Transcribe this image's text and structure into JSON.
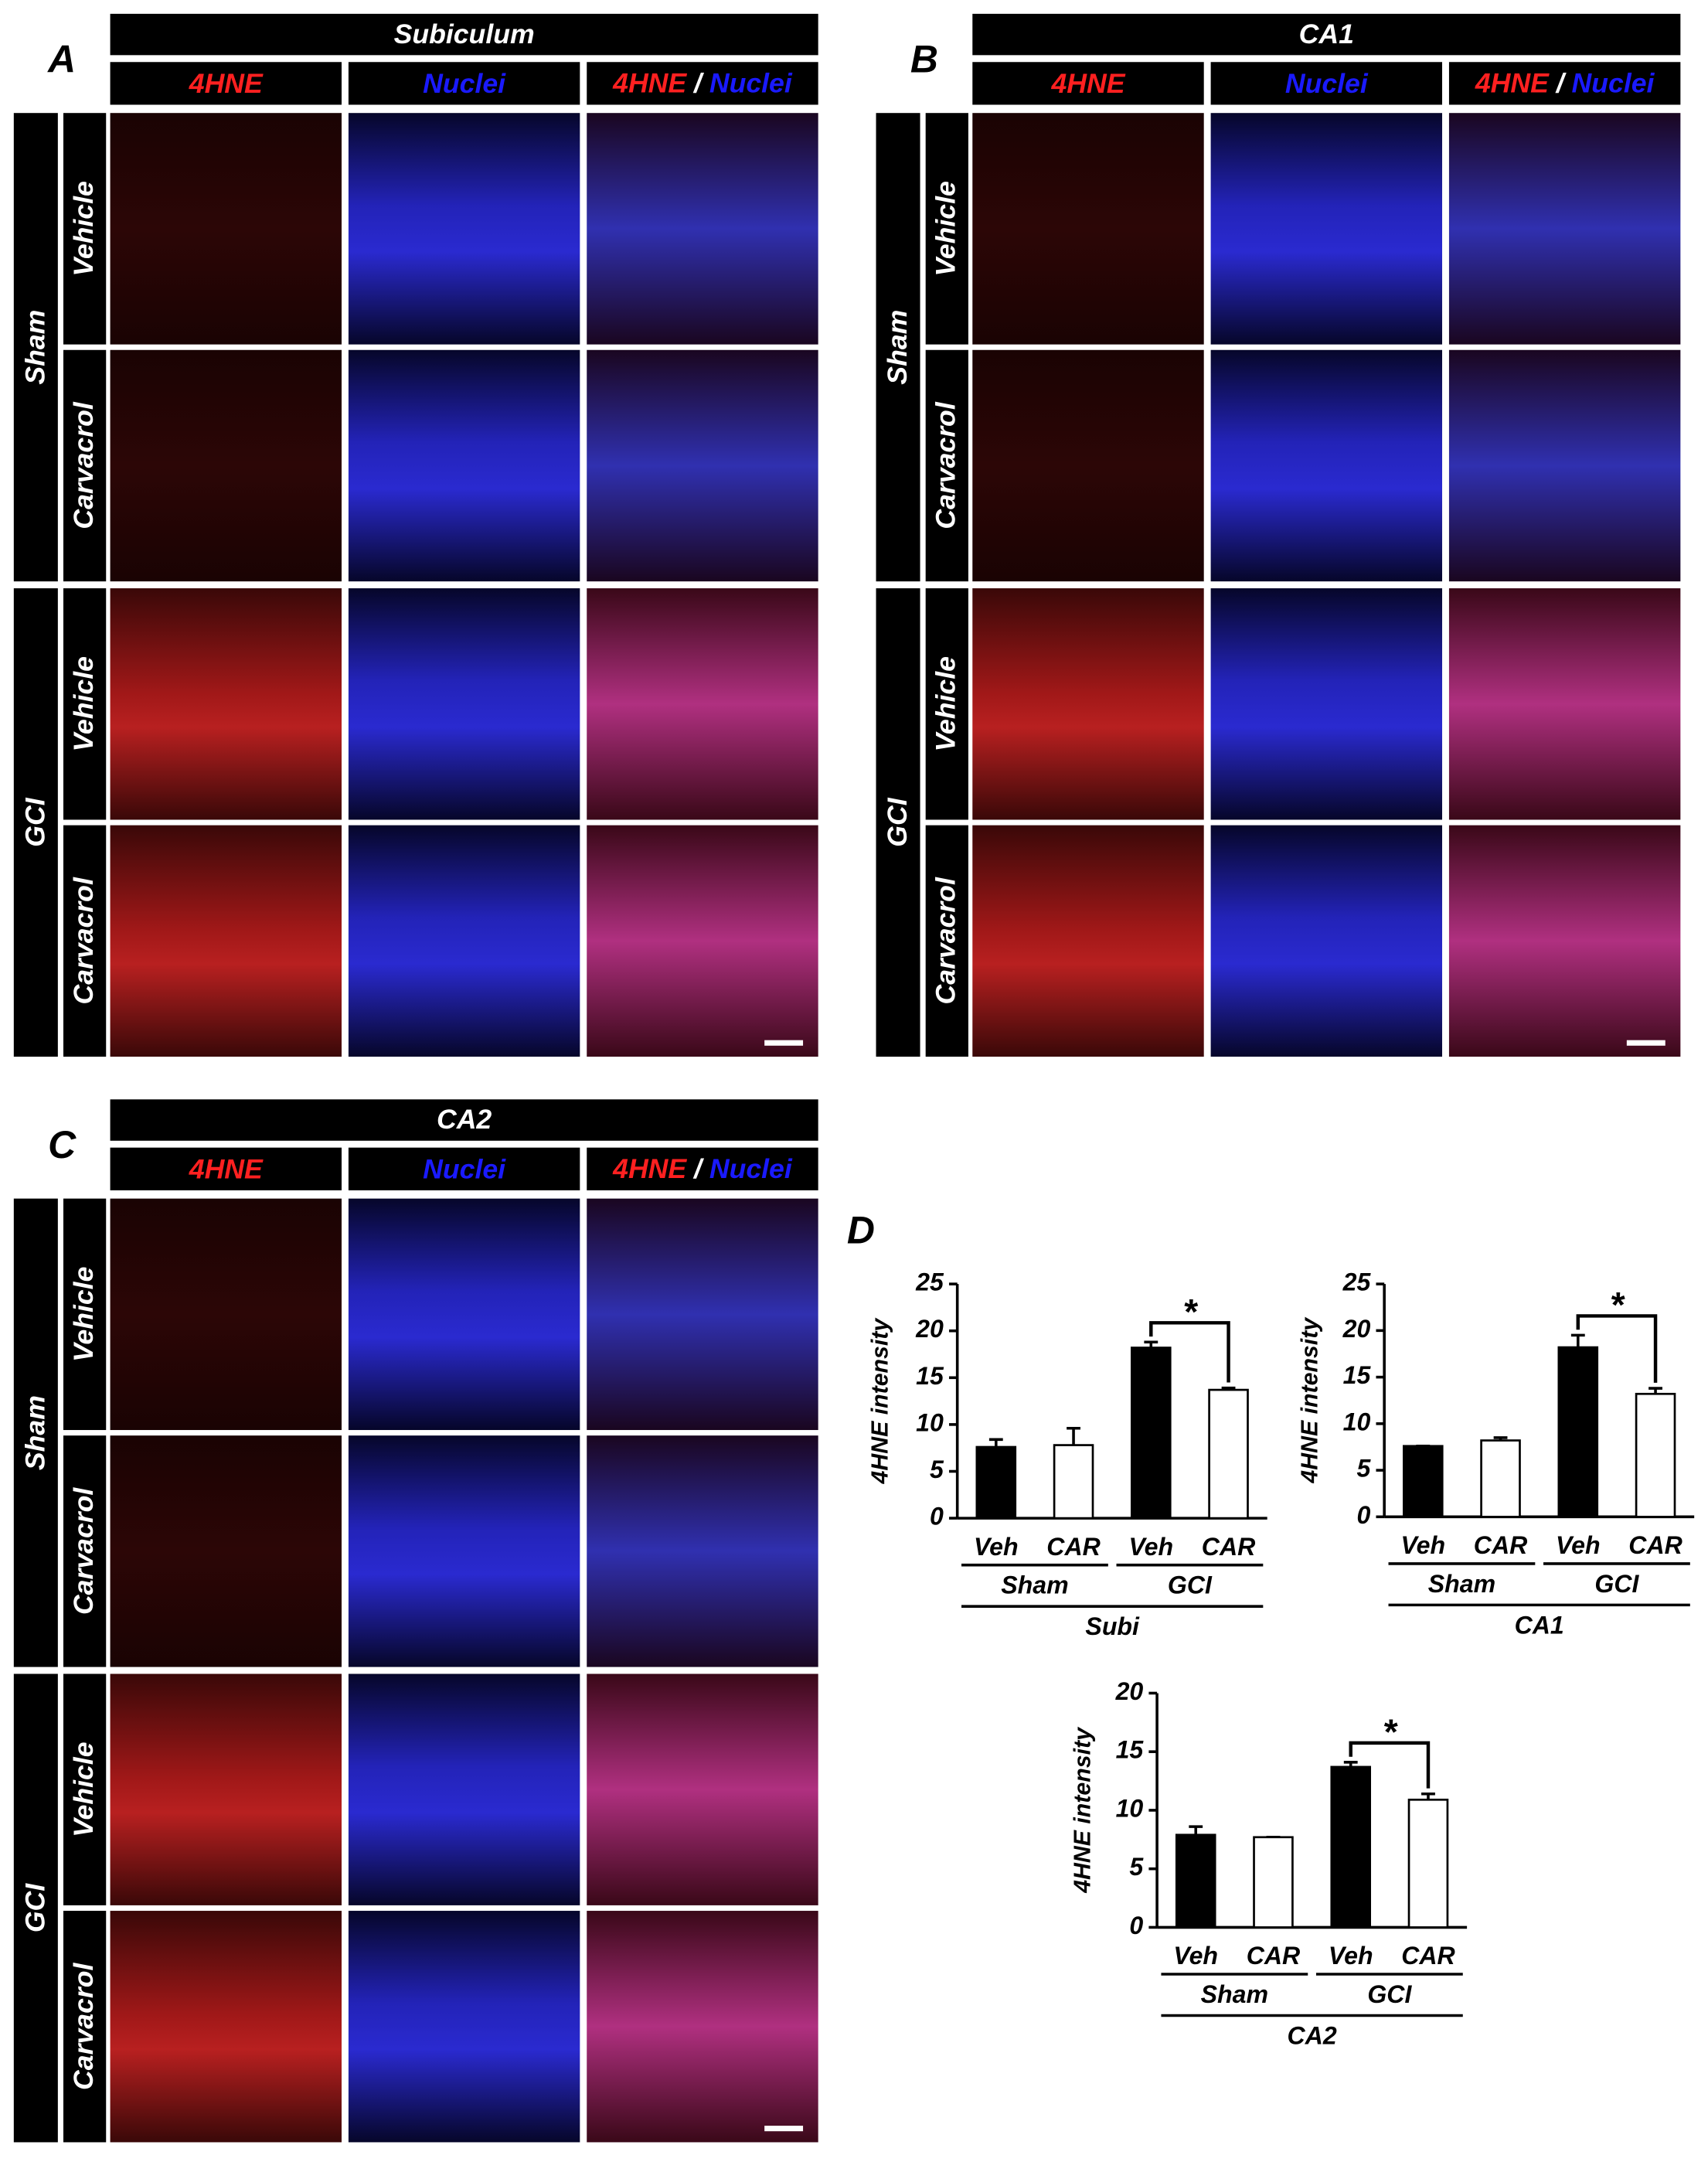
{
  "panels": [
    {
      "label": "A",
      "title": "Subiculum",
      "columns": [
        "4HNE",
        "Nuclei",
        [
          "4HNE",
          "/",
          "Nuclei"
        ]
      ],
      "groups": [
        {
          "name": "Sham",
          "rows": [
            "Vehicle",
            "Carvacrol"
          ]
        },
        {
          "name": "GCI",
          "rows": [
            "Vehicle",
            "Carvacrol"
          ]
        }
      ]
    },
    {
      "label": "B",
      "title": "CA1",
      "columns": [
        "4HNE",
        "Nuclei",
        [
          "4HNE",
          "/",
          "Nuclei"
        ]
      ],
      "groups": [
        {
          "name": "Sham",
          "rows": [
            "Vehicle",
            "Carvacrol"
          ]
        },
        {
          "name": "GCI",
          "rows": [
            "Vehicle",
            "Carvacrol"
          ]
        }
      ]
    },
    {
      "label": "C",
      "title": "CA2",
      "columns": [
        "4HNE",
        "Nuclei",
        [
          "4HNE",
          "/",
          "Nuclei"
        ]
      ],
      "groups": [
        {
          "name": "Sham",
          "rows": [
            "Vehicle",
            "Carvacrol"
          ]
        },
        {
          "name": "GCI",
          "rows": [
            "Vehicle",
            "Carvacrol"
          ]
        }
      ]
    }
  ],
  "chart_panel_label": "D",
  "chart_data": [
    {
      "type": "bar",
      "xlabel": "Subi",
      "ylabel": "4HNE intensity",
      "categories": [
        "Veh",
        "CAR",
        "Veh",
        "CAR"
      ],
      "groups": [
        "Sham",
        "GCI"
      ],
      "values": [
        7.6,
        7.8,
        18.2,
        13.7
      ],
      "errors": [
        0.8,
        1.8,
        0.6,
        0.2
      ],
      "colors": [
        "#000000",
        "#ffffff",
        "#000000",
        "#ffffff"
      ],
      "ylim": [
        0,
        25
      ],
      "yticks": [
        0,
        5,
        10,
        15,
        20,
        25
      ],
      "significance_label": "*"
    },
    {
      "type": "bar",
      "xlabel": "CA1",
      "ylabel": "4HNE intensity",
      "categories": [
        "Veh",
        "CAR",
        "Veh",
        "CAR"
      ],
      "groups": [
        "Sham",
        "GCI"
      ],
      "values": [
        7.6,
        8.2,
        18.2,
        13.2
      ],
      "errors": [
        0,
        0.3,
        1.3,
        0.6
      ],
      "colors": [
        "#000000",
        "#ffffff",
        "#000000",
        "#ffffff"
      ],
      "ylim": [
        0,
        25
      ],
      "yticks": [
        0,
        5,
        10,
        15,
        20,
        25
      ],
      "significance_label": "*"
    },
    {
      "type": "bar",
      "xlabel": "CA2",
      "ylabel": "4HNE intensity",
      "categories": [
        "Veh",
        "CAR",
        "Veh",
        "CAR"
      ],
      "groups": [
        "Sham",
        "GCI"
      ],
      "values": [
        7.9,
        7.7,
        13.7,
        10.9
      ],
      "errors": [
        0.7,
        0,
        0.4,
        0.5
      ],
      "colors": [
        "#000000",
        "#ffffff",
        "#000000",
        "#ffffff"
      ],
      "ylim": [
        0,
        20
      ],
      "yticks": [
        0,
        5,
        10,
        15,
        20
      ],
      "significance_label": "*"
    }
  ]
}
